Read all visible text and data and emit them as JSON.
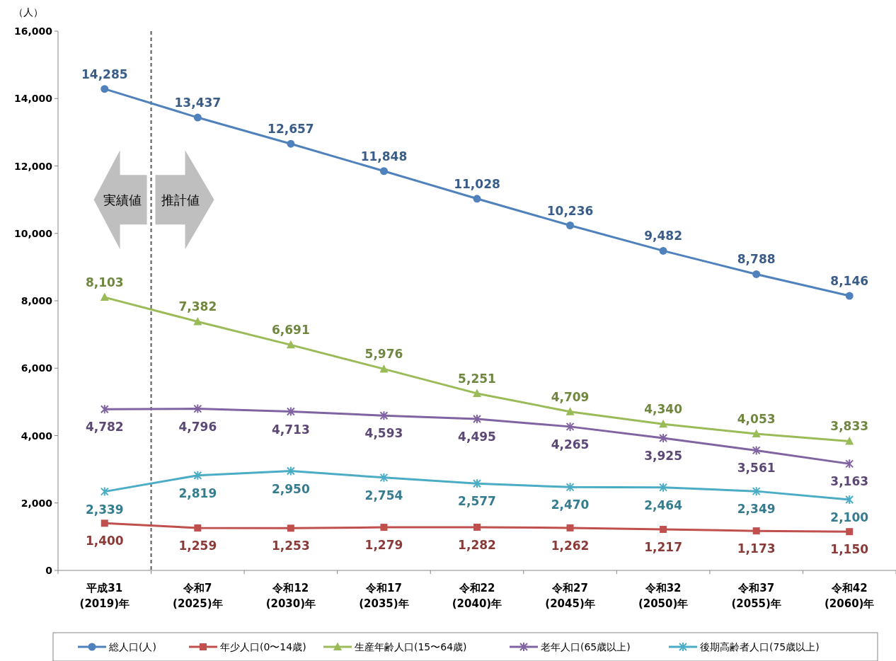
{
  "chart_data": {
    "type": "line",
    "ylabel": "（人）",
    "categories": [
      "平成31\n(2019)年",
      "令和7\n(2025)年",
      "令和12\n(2030)年",
      "令和17\n(2035)年",
      "令和22\n(2040)年",
      "令和27\n(2045)年",
      "令和32\n(2050)年",
      "令和37\n(2055)年",
      "令和42\n(2060)年"
    ],
    "series": [
      {
        "name": "総人口(人)",
        "color": "#4f81bd",
        "marker": "circle",
        "values": [
          14285,
          13437,
          12657,
          11848,
          11028,
          10236,
          9482,
          8788,
          8146
        ],
        "value_labels": [
          "14,285",
          "13,437",
          "12,657",
          "11,848",
          "11,028",
          "10,236",
          "9,482",
          "8,788",
          "8,146"
        ]
      },
      {
        "name": "年少人口(0〜14歳)",
        "color": "#c0504d",
        "marker": "square",
        "values": [
          1400,
          1259,
          1253,
          1279,
          1282,
          1262,
          1217,
          1173,
          1150
        ],
        "value_labels": [
          "1,400",
          "1,259",
          "1,253",
          "1,279",
          "1,282",
          "1,262",
          "1,217",
          "1,173",
          "1,150"
        ]
      },
      {
        "name": "生産年齢人口(15〜64歳)",
        "color": "#9bbb59",
        "marker": "triangle",
        "values": [
          8103,
          7382,
          6691,
          5976,
          5251,
          4709,
          4340,
          4053,
          3833
        ],
        "value_labels": [
          "8,103",
          "7,382",
          "6,691",
          "5,976",
          "5,251",
          "4,709",
          "4,340",
          "4,053",
          "3,833"
        ]
      },
      {
        "name": "老年人口(65歳以上)",
        "color": "#8064a2",
        "marker": "cross",
        "values": [
          4782,
          4796,
          4713,
          4593,
          4495,
          4265,
          3925,
          3561,
          3163
        ],
        "value_labels": [
          "4,782",
          "4,796",
          "4,713",
          "4,593",
          "4,495",
          "4,265",
          "3,925",
          "3,561",
          "3,163"
        ]
      },
      {
        "name": "後期高齢者人口(75歳以上)",
        "color": "#4bacc6",
        "marker": "cross",
        "values": [
          2339,
          2819,
          2950,
          2754,
          2577,
          2470,
          2464,
          2349,
          2100
        ],
        "value_labels": [
          "2,339",
          "2,819",
          "2,950",
          "2,754",
          "2,577",
          "2,470",
          "2,464",
          "2,349",
          "2,100"
        ]
      }
    ],
    "ylim": [
      0,
      16000
    ],
    "yticks": [
      {
        "value": 0,
        "label": "0"
      },
      {
        "value": 2000,
        "label": "2,000"
      },
      {
        "value": 4000,
        "label": "4,000"
      },
      {
        "value": 6000,
        "label": "6,000"
      },
      {
        "value": 8000,
        "label": "8,000"
      },
      {
        "value": 10000,
        "label": "10,000"
      },
      {
        "value": 12000,
        "label": "12,000"
      },
      {
        "value": 14000,
        "label": "14,000"
      },
      {
        "value": 16000,
        "label": "16,000"
      }
    ],
    "annotations": [
      "実績値",
      "推計値"
    ],
    "legend": "bottom",
    "grid": false,
    "line_style": "solid"
  }
}
